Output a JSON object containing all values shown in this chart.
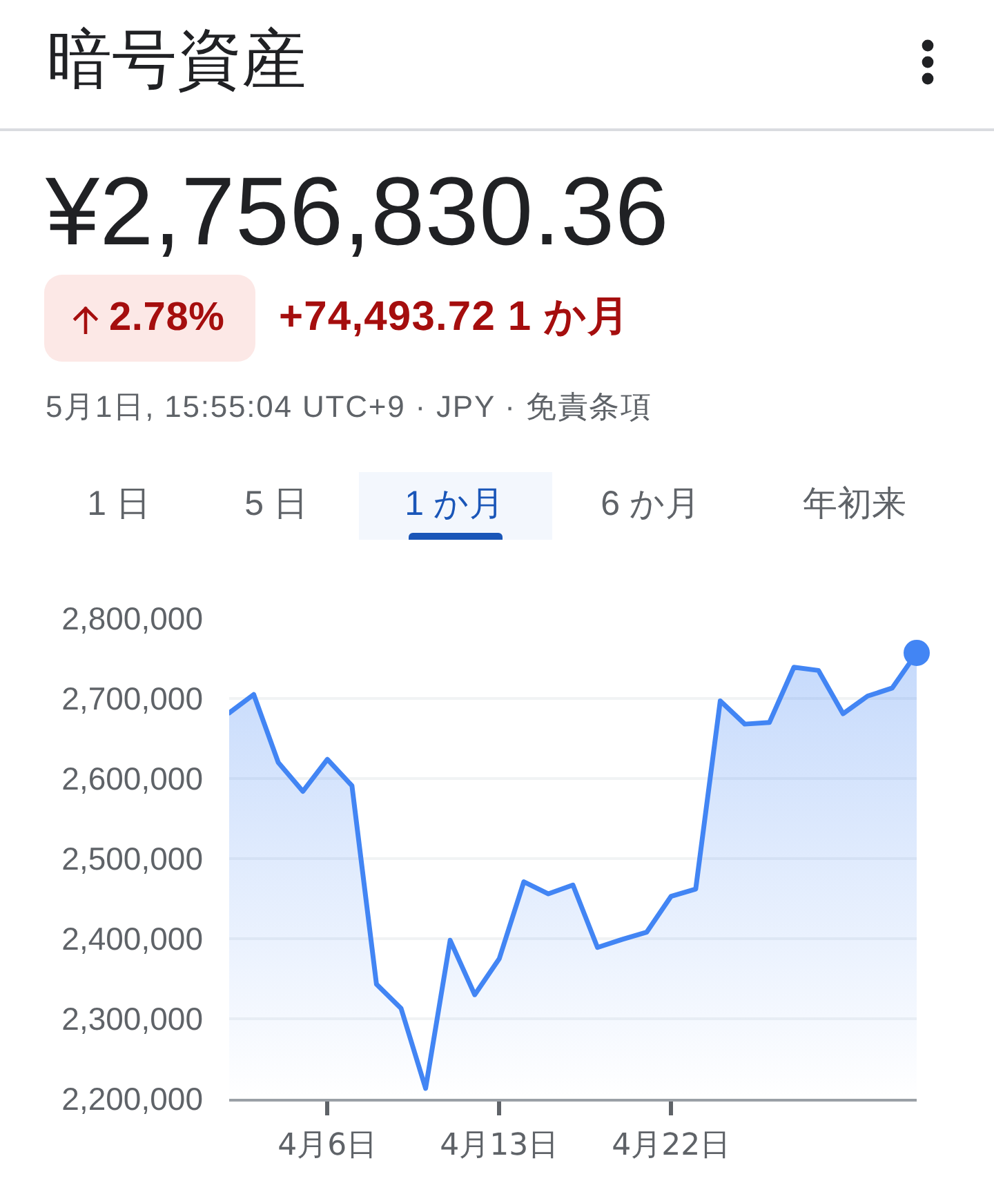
{
  "chart_data": {
    "type": "area",
    "title": "暗号資産",
    "subtitle": "¥2,756,830.36",
    "annotations": [
      "2.78%",
      "+74,493.72 1 か月",
      "5月1日, 15:55:04 UTC+9 · JPY · 免責条項",
      "1 日",
      "5 日",
      "1 か月",
      "6 か月",
      "年初来"
    ],
    "categories": [
      null,
      null,
      null,
      null,
      "4月6日",
      null,
      null,
      null,
      null,
      null,
      null,
      "4月13日",
      null,
      null,
      null,
      null,
      null,
      null,
      "4月22日",
      null,
      null,
      null,
      null,
      null,
      null,
      null,
      null,
      null,
      null
    ],
    "series": [
      {
        "color": "#4285f4",
        "values": [
          2682000,
          2705000,
          2620000,
          2584000,
          2624000,
          2591000,
          2343000,
          2313000,
          2213000,
          2398000,
          2330000,
          2375000,
          2471000,
          2456000,
          2467000,
          2389000,
          2399000,
          2408000,
          2453000,
          2462000,
          2697000,
          2668000,
          2670000,
          2739000,
          2735000,
          2681000,
          2703000,
          2713000,
          2757000
        ]
      },
      {
        "type": "scatter",
        "color": "#4285f4",
        "values": [
          null,
          null,
          null,
          null,
          null,
          null,
          null,
          null,
          null,
          null,
          null,
          null,
          null,
          null,
          null,
          null,
          null,
          null,
          null,
          null,
          null,
          null,
          null,
          null,
          null,
          null,
          null,
          null,
          2757000
        ]
      }
    ],
    "ylim": [
      2200000,
      2800000
    ],
    "yticks": [
      {
        "value": 2200000,
        "label": "2,200,000"
      },
      {
        "value": 2300000,
        "label": "2,300,000"
      },
      {
        "value": 2400000,
        "label": "2,400,000"
      },
      {
        "value": 2500000,
        "label": "2,500,000"
      },
      {
        "value": 2600000,
        "label": "2,600,000"
      },
      {
        "value": 2700000,
        "label": "2,700,000"
      },
      {
        "value": 2800000,
        "label": "2,800,000"
      }
    ],
    "grid": "y"
  }
}
